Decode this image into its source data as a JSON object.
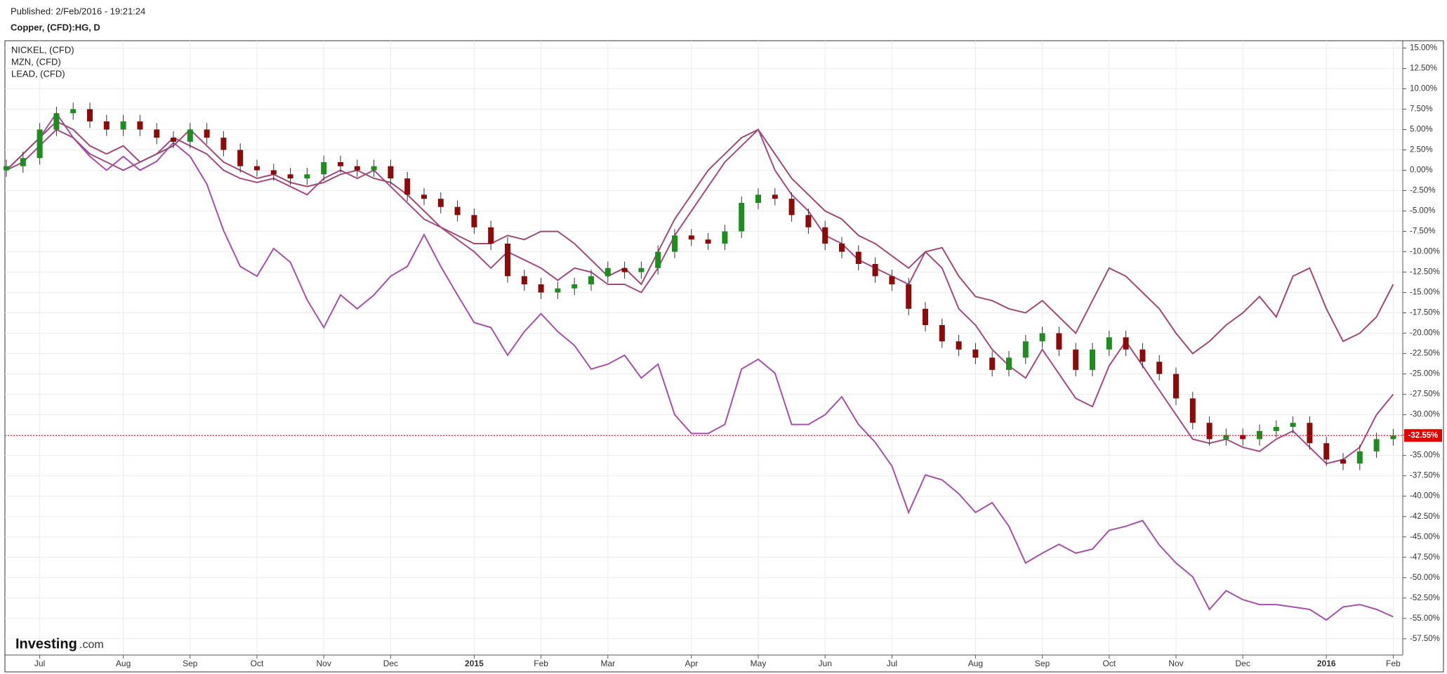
{
  "header": {
    "published": "Published: 2/Feb/2016 - 19:21:24"
  },
  "watermark": {
    "brand": "Investing",
    "suffix": ".com"
  },
  "chart_data": {
    "type": "candlestick",
    "title": "Copper, (CFD):HG, D",
    "categories": [
      null,
      null,
      "Jul",
      null,
      null,
      null,
      null,
      "Aug",
      null,
      null,
      null,
      "Sep",
      null,
      null,
      null,
      "Oct",
      null,
      null,
      null,
      "Nov",
      null,
      null,
      null,
      "Dec",
      null,
      null,
      null,
      null,
      "2015",
      null,
      null,
      null,
      "Feb",
      null,
      null,
      null,
      "Mar",
      null,
      null,
      null,
      null,
      "Apr",
      null,
      null,
      null,
      "May",
      null,
      null,
      null,
      "Jun",
      null,
      null,
      null,
      "Jul",
      null,
      null,
      null,
      null,
      "Aug",
      null,
      null,
      null,
      "Sep",
      null,
      null,
      null,
      "Oct",
      null,
      null,
      null,
      "Nov",
      null,
      null,
      null,
      "Dec",
      null,
      null,
      null,
      null,
      "2016",
      null,
      null,
      null,
      "Feb"
    ],
    "candles": {
      "up_color": "#1e8c1e",
      "down_color": "#8b0a0a",
      "open": [
        0,
        0.5,
        1.5,
        5,
        7,
        7.5,
        6,
        5,
        6,
        5,
        4,
        3.5,
        5,
        4,
        2.5,
        0.5,
        0,
        -0.5,
        -1,
        -0.5,
        1,
        0.5,
        0,
        0.5,
        -1,
        -3,
        -3.5,
        -4.5,
        -5.5,
        -7,
        -9,
        -13,
        -14,
        -15,
        -14.5,
        -14,
        -13,
        -12,
        -12.5,
        -12,
        -10,
        -8,
        -8.5,
        -9,
        -7.5,
        -4,
        -3,
        -3.5,
        -5.5,
        -7,
        -9,
        -10,
        -11.5,
        -13,
        -14,
        -17,
        -19,
        -21,
        -22,
        -23,
        -24.5,
        -23,
        -21,
        -20,
        -22,
        -24.5,
        -22,
        -20.5,
        -22,
        -23.5,
        -25,
        -28,
        -31,
        -33,
        -32.5,
        -33,
        -32,
        -31.5,
        -31,
        -33.5,
        -35.5,
        -36,
        -34.5,
        -33
      ],
      "high": [
        1.3,
        2.3,
        5.8,
        7.8,
        8.3,
        8.3,
        6.8,
        6.8,
        6.8,
        5.8,
        4.8,
        5.8,
        5.8,
        4.8,
        3.3,
        1.3,
        0.8,
        0.3,
        0.3,
        1.8,
        1.8,
        1.3,
        1.3,
        1.3,
        -0.2,
        -2.2,
        -2.7,
        -3.7,
        -4.7,
        -6.2,
        -8.2,
        -12.2,
        -13.2,
        -13.7,
        -13.2,
        -12.2,
        -11.2,
        -11.2,
        -11.2,
        -9.2,
        -7.2,
        -7.2,
        -7.7,
        -6.7,
        -3.2,
        -2.2,
        -2.2,
        -2.7,
        -4.7,
        -6.2,
        -8.2,
        -9.2,
        -10.7,
        -12.2,
        -13.2,
        -16.2,
        -18.2,
        -20.2,
        -21.2,
        -22.2,
        -22.2,
        -20.2,
        -19.2,
        -19.2,
        -21.2,
        -21.2,
        -19.7,
        -19.7,
        -21.2,
        -22.7,
        -24.2,
        -27.2,
        -30.2,
        -31.7,
        -31.7,
        -31.2,
        -30.7,
        -30.2,
        -30.2,
        -32.7,
        -34.7,
        -33.7,
        -32.2,
        -31.75
      ],
      "low": [
        -0.8,
        -0.3,
        0.7,
        4.2,
        6.2,
        5.2,
        4.2,
        4.2,
        4.2,
        3.2,
        2.7,
        2.7,
        3.2,
        1.7,
        -0.3,
        -0.8,
        -1.3,
        -1.8,
        -1.8,
        -1.3,
        -0.3,
        -0.8,
        -0.8,
        -1.8,
        -3.8,
        -4.3,
        -5.3,
        -6.3,
        -7.8,
        -9.8,
        -13.8,
        -14.8,
        -15.8,
        -15.8,
        -15.3,
        -14.8,
        -13.8,
        -13.3,
        -13.3,
        -12.8,
        -10.8,
        -9.3,
        -9.8,
        -9.8,
        -8.3,
        -4.8,
        -4.3,
        -6.3,
        -7.8,
        -9.8,
        -10.8,
        -12.3,
        -13.8,
        -14.8,
        -17.8,
        -19.8,
        -21.8,
        -22.8,
        -23.8,
        -25.3,
        -25.3,
        -23.8,
        -21.8,
        -22.8,
        -25.3,
        -25.3,
        -22.8,
        -22.8,
        -24.3,
        -25.8,
        -28.8,
        -31.8,
        -33.8,
        -33.8,
        -33.8,
        -33.8,
        -32.8,
        -32.3,
        -34.3,
        -36.3,
        -36.8,
        -36.8,
        -35.3,
        -33.8
      ],
      "close": [
        0.5,
        1.5,
        5,
        7,
        7.5,
        6,
        5,
        6,
        5,
        4,
        3.5,
        5,
        4,
        2.5,
        0.5,
        0,
        -0.5,
        -1,
        -0.5,
        1,
        0.5,
        0,
        0.5,
        -1,
        -3,
        -3.5,
        -4.5,
        -5.5,
        -7,
        -9,
        -13,
        -14,
        -15,
        -14.5,
        -14,
        -13,
        -12,
        -12.5,
        -12,
        -10,
        -8,
        -8.5,
        -9,
        -7.5,
        -4,
        -3,
        -3.5,
        -5.5,
        -7,
        -9,
        -10,
        -11.5,
        -13,
        -14,
        -17,
        -19,
        -21,
        -22,
        -23,
        -24.5,
        -23,
        -21,
        -20,
        -22,
        -24.5,
        -22,
        -20.5,
        -22,
        -23.5,
        -25,
        -28,
        -31,
        -33,
        -32.5,
        -33,
        -32,
        -31.5,
        -31,
        -33.5,
        -35.5,
        -36,
        -34.5,
        -33,
        -32.55
      ]
    },
    "last_price": {
      "value": -32.55,
      "label": "-32.55%",
      "color": "#e00000"
    },
    "series": [
      {
        "name": "NICKEL,  (CFD)",
        "color": "#a352a8",
        "values": [
          0,
          2,
          4,
          7,
          4,
          1.7,
          0,
          1.7,
          0,
          1.1,
          3.4,
          1.7,
          -1.7,
          -7.4,
          -11.8,
          -13,
          -9.6,
          -11.3,
          -15.9,
          -19.3,
          -15.3,
          -17,
          -15.3,
          -13,
          -11.8,
          -7.9,
          -11.8,
          -15.3,
          -18.7,
          -19.3,
          -22.7,
          -19.8,
          -17.6,
          -19.8,
          -21.5,
          -24.4,
          -23.8,
          -22.7,
          -25.5,
          -23.8,
          -30,
          -32.3,
          -32.3,
          -31.2,
          -24.4,
          -23.2,
          -24.9,
          -31.2,
          -31.2,
          -30,
          -27.8,
          -31.2,
          -33.4,
          -36.3,
          -42,
          -37.4,
          -38,
          -39.7,
          -42,
          -40.8,
          -43.7,
          -48.2,
          -47,
          -45.9,
          -47,
          -46.5,
          -44.2,
          -43.7,
          -43,
          -46,
          -48.2,
          -49.9,
          -53.9,
          -51.6,
          -52.7,
          -53.3,
          -53.3,
          -53.6,
          -53.9,
          -55.2,
          -53.6,
          -53.3,
          -53.9,
          -54.8
        ]
      },
      {
        "name": "MZN,  (CFD)",
        "color": "#a04b86",
        "values": [
          0,
          1,
          3,
          5,
          4,
          2,
          1,
          0,
          1,
          2,
          4,
          3,
          2,
          0,
          -1,
          -1.5,
          -1,
          -2,
          -3,
          -1,
          0,
          -1,
          0,
          -2,
          -4,
          -6,
          -7,
          -8.5,
          -10,
          -12,
          -10,
          -11,
          -12,
          -13.5,
          -12,
          -12.5,
          -14,
          -14,
          -15,
          -12,
          -8,
          -5,
          -2,
          1,
          3,
          5,
          0,
          -3,
          -5,
          -8,
          -9,
          -11,
          -12,
          -13,
          -14,
          -10,
          -12,
          -17,
          -19,
          -22,
          -24,
          -25.5,
          -22,
          -25,
          -28,
          -29,
          -24,
          -21,
          -24,
          -27,
          -30,
          -33,
          -33.5,
          -33,
          -34,
          -34.5,
          -33,
          -32,
          -34,
          -36,
          -35.5,
          -34,
          -30,
          -27.5
        ]
      },
      {
        "name": "LEAD,  (CFD)",
        "color": "#9e4a72",
        "values": [
          0,
          2,
          4,
          6,
          5,
          3,
          2,
          3,
          1,
          2,
          3,
          5,
          3,
          1,
          0,
          -1,
          -0.5,
          -1.5,
          -2,
          -1.5,
          -0.5,
          0,
          -1,
          -1.5,
          -3,
          -5,
          -7,
          -8,
          -9,
          -9,
          -8,
          -8.5,
          -7.5,
          -7.5,
          -9,
          -11,
          -13,
          -12,
          -14,
          -10,
          -6,
          -3,
          0,
          2,
          4,
          5,
          2,
          -1,
          -3,
          -5,
          -6,
          -8,
          -9,
          -10.5,
          -12,
          -10,
          -9.5,
          -13,
          -15.5,
          -16,
          -17,
          -17.5,
          -16,
          -18,
          -20,
          -16,
          -12,
          -13,
          -15,
          -17,
          -20,
          -22.5,
          -21,
          -19,
          -17.5,
          -15.5,
          -18,
          -13,
          -12,
          -17,
          -21,
          -20,
          -18,
          -14
        ]
      }
    ],
    "ylim": [
      -59.5,
      15.9
    ],
    "yticks": [
      {
        "value": 15,
        "label": "15.00%"
      },
      {
        "value": 12.5,
        "label": "12.50%"
      },
      {
        "value": 10,
        "label": "10.00%"
      },
      {
        "value": 7.5,
        "label": "7.50%"
      },
      {
        "value": 5,
        "label": "5.00%"
      },
      {
        "value": 2.5,
        "label": "2.50%"
      },
      {
        "value": 0,
        "label": "0.00%"
      },
      {
        "value": -2.5,
        "label": "-2.50%"
      },
      {
        "value": -5,
        "label": "-5.00%"
      },
      {
        "value": -7.5,
        "label": "-7.50%"
      },
      {
        "value": -10,
        "label": "-10.00%"
      },
      {
        "value": -12.5,
        "label": "-12.50%"
      },
      {
        "value": -15,
        "label": "-15.00%"
      },
      {
        "value": -17.5,
        "label": "-17.50%"
      },
      {
        "value": -20,
        "label": "-20.00%"
      },
      {
        "value": -22.5,
        "label": "-22.50%"
      },
      {
        "value": -25,
        "label": "-25.00%"
      },
      {
        "value": -27.5,
        "label": "-27.50%"
      },
      {
        "value": -30,
        "label": "-30.00%"
      },
      {
        "value": -32.5,
        "label": "-32.50%"
      },
      {
        "value": -35,
        "label": "-35.00%"
      },
      {
        "value": -37.5,
        "label": "-37.50%"
      },
      {
        "value": -40,
        "label": "-40.00%"
      },
      {
        "value": -42.5,
        "label": "-42.50%"
      },
      {
        "value": -45,
        "label": "-45.00%"
      },
      {
        "value": -47.5,
        "label": "-47.50%"
      },
      {
        "value": -50,
        "label": "-50.00%"
      },
      {
        "value": -52.5,
        "label": "-52.50%"
      },
      {
        "value": -55,
        "label": "-55.00%"
      },
      {
        "value": -57.5,
        "label": "-57.50%"
      }
    ],
    "grid": true,
    "legend": "top-left"
  }
}
